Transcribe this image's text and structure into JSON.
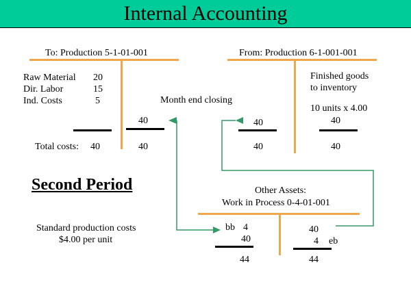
{
  "title": "Internal Accounting",
  "left_account": {
    "header": "To:  Production  5-1-01-001",
    "debits": [
      {
        "label": "Raw Material",
        "value": "20"
      },
      {
        "label": "Dir. Labor",
        "value": "15"
      },
      {
        "label": "Ind. Costs",
        "value": "5"
      }
    ],
    "total_label": "Total costs:",
    "total_value": "40",
    "credit_entry": "40",
    "credit_total": "40"
  },
  "month_end_label": "Month end closing",
  "right_account": {
    "header": "From:  Production 6-1-001-001",
    "debit_entry": "40",
    "debit_total": "40",
    "credit_desc_line1": "Finished goods",
    "credit_desc_line2": "to inventory",
    "credit_calc": "10 units x 4.00",
    "credit_entry": "40",
    "credit_total": "40"
  },
  "second_period_heading": "Second Period",
  "standard_costs_line1": "Standard production costs",
  "standard_costs_line2": "$4.00 per unit",
  "wip_account": {
    "header_line1": "Other Assets:",
    "header_line2": "Work in Process 0-4-01-001",
    "debit_bb_label": "bb",
    "debit_bb_value": "4",
    "debit_entry": "40",
    "debit_total": "44",
    "credit_entry": "40",
    "credit_eb_value": "4",
    "credit_eb_label": "eb",
    "credit_total": "44"
  },
  "colors": {
    "title_bar": "#00cc99",
    "t_account_lines": "#f0a64a",
    "arrows": "#339966",
    "underline_rules": "#000000"
  }
}
